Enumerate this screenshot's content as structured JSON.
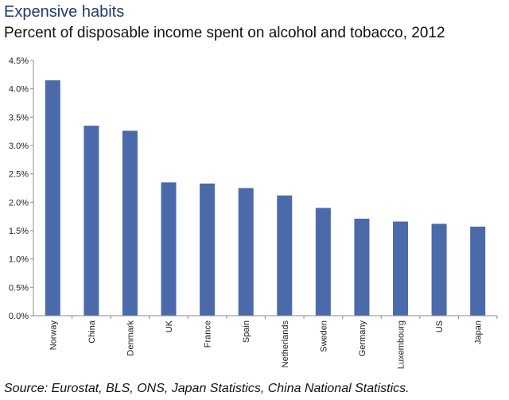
{
  "header": {
    "title": "Expensive habits",
    "subtitle": "Percent of disposable income spent on alcohol and tobacco, 2012"
  },
  "footer": {
    "source": "Source: Eurostat, BLS, ONS, Japan Statistics, China National Statistics."
  },
  "colors": {
    "bar": "#4a6aaa",
    "axis": "#8c8c8c",
    "title": "#1f3c6e"
  },
  "chart_data": {
    "type": "bar",
    "title": "Percent of disposable income spent on alcohol and tobacco, 2012",
    "xlabel": "",
    "ylabel": "",
    "categories": [
      "Norway",
      "China",
      "Denmark",
      "UK",
      "France",
      "Spain",
      "Netherlands",
      "Sweden",
      "Germany",
      "Luxembourg",
      "US",
      "Japan"
    ],
    "values": [
      4.15,
      3.35,
      3.26,
      2.35,
      2.33,
      2.25,
      2.12,
      1.9,
      1.71,
      1.66,
      1.62,
      1.57
    ],
    "ylim": [
      0,
      4.5
    ],
    "yticks": [
      "0.0%",
      "0.5%",
      "1.0%",
      "1.5%",
      "2.0%",
      "2.5%",
      "3.0%",
      "3.5%",
      "4.0%",
      "4.5%"
    ],
    "grid": false,
    "legend": "none"
  }
}
